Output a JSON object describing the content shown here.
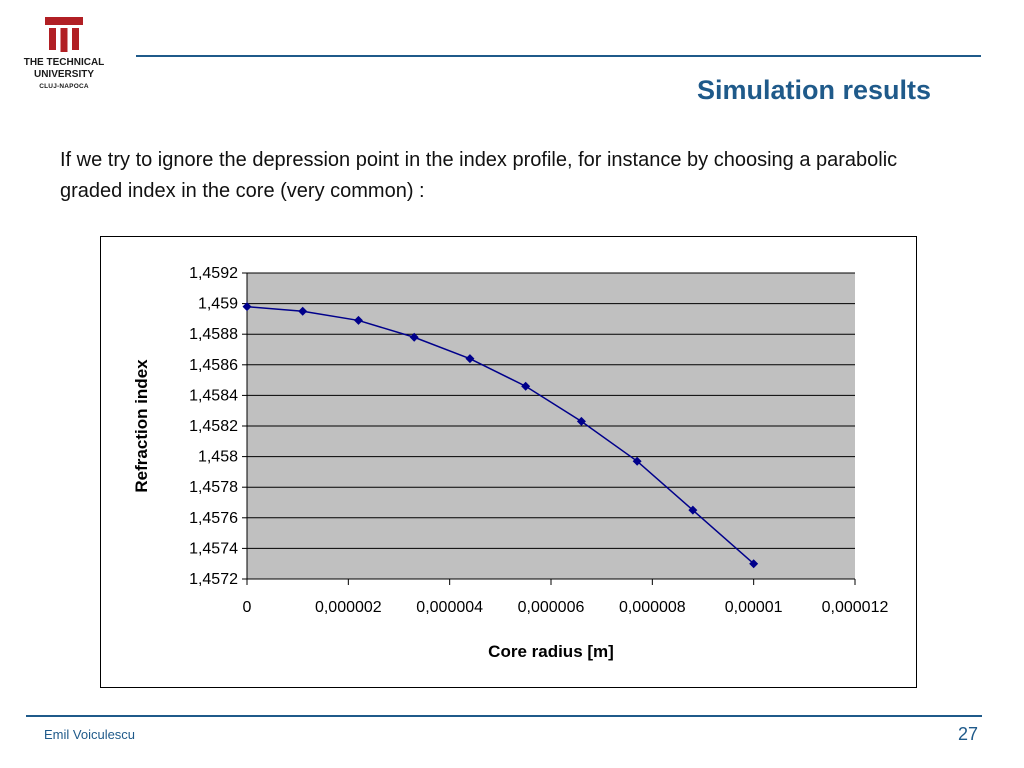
{
  "logo": {
    "line1": "THE TECHNICAL",
    "line2": "UNIVERSITY",
    "line3": "CLUJ-NAPOCA",
    "color": "#b11f24"
  },
  "slide": {
    "title": "Simulation results",
    "intro": "If we try to ignore the depression point in the index profile, for instance by choosing a parabolic graded index in the core (very common) :",
    "author": "Emil Voiculescu",
    "page_number": "27",
    "accent_color": "#1f5a8a"
  },
  "chart_data": {
    "type": "line",
    "xlabel": "Core radius [m]",
    "ylabel": "Refraction index",
    "xlim": [
      0,
      1.2e-05
    ],
    "ylim": [
      1.4572,
      1.4592
    ],
    "xticks": [
      0,
      2e-06,
      4e-06,
      6e-06,
      8e-06,
      1e-05,
      1.2e-05
    ],
    "xtick_labels": [
      "0",
      "0,000002",
      "0,000004",
      "0,000006",
      "0,000008",
      "0,00001",
      "0,000012"
    ],
    "yticks": [
      1.4572,
      1.4574,
      1.4576,
      1.4578,
      1.458,
      1.4582,
      1.4584,
      1.4586,
      1.4588,
      1.459,
      1.4592
    ],
    "ytick_labels": [
      "1,4572",
      "1,4574",
      "1,4576",
      "1,4578",
      "1,458",
      "1,4582",
      "1,4584",
      "1,4586",
      "1,4588",
      "1,459",
      "1,4592"
    ],
    "grid": true,
    "plot_background": "#c0c0c0",
    "series": [
      {
        "color": "#00008b",
        "marker": "diamond",
        "x": [
          0,
          1.1e-06,
          2.2e-06,
          3.3e-06,
          4.4e-06,
          5.5e-06,
          6.6e-06,
          7.7e-06,
          8.8e-06,
          1e-05
        ],
        "values": [
          1.45898,
          1.45895,
          1.45889,
          1.45878,
          1.45864,
          1.45846,
          1.45823,
          1.45797,
          1.45765,
          1.4573
        ]
      }
    ]
  }
}
